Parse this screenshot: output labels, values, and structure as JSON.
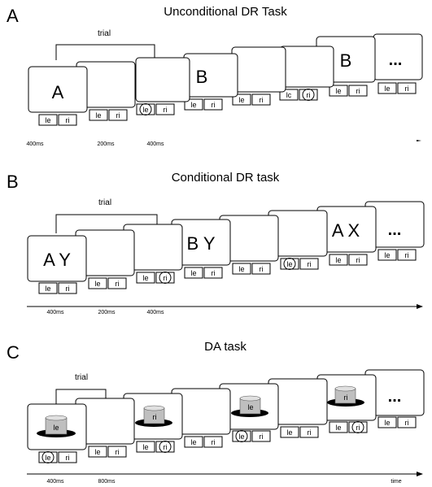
{
  "panelA": {
    "letter": "A",
    "title": "Unconditional DR Task",
    "trial_label": "trial",
    "stimuli": {
      "s1": "A",
      "s4": "B",
      "s7": "B",
      "s8": "..."
    },
    "keys": {
      "left": "le",
      "right": "ri",
      "left_alt": "lc"
    },
    "times": [
      "400ms",
      "200ms",
      "400ms"
    ]
  },
  "panelB": {
    "letter": "B",
    "title": "Conditional DR task",
    "trial_label": "trial",
    "stimuli": {
      "s1": "A Y",
      "s4": "B Y",
      "s7": "A X",
      "s8": "..."
    },
    "keys": {
      "left": "le",
      "right": "ri"
    },
    "times": [
      "400ms",
      "200ms",
      "400ms"
    ]
  },
  "panelC": {
    "letter": "C",
    "title": "DA task",
    "trial_label": "trial",
    "stimuli": {
      "s8": "..."
    },
    "object_labels": {
      "o1": "le",
      "o3": "ri",
      "o5": "le",
      "o7": "ri"
    },
    "keys": {
      "left": "le",
      "right": "ri"
    },
    "times": [
      "400ms",
      "800ms"
    ],
    "axis_label": "time"
  }
}
